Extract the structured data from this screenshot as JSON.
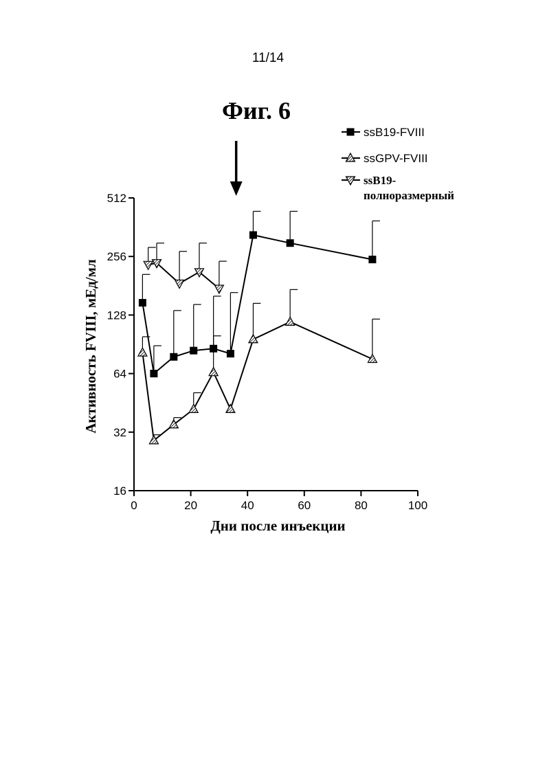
{
  "page_number": "11/14",
  "figure_title": "Фиг. 6",
  "chart_data": {
    "type": "line",
    "xlabel": "Дни после инъекции",
    "ylabel": "Активность FVIII, мЕд/мл",
    "xlim": [
      0,
      100
    ],
    "ylim": [
      16,
      512
    ],
    "y_scale": "log2",
    "x_ticks": [
      0,
      20,
      40,
      60,
      80,
      100
    ],
    "y_ticks": [
      16,
      32,
      64,
      128,
      256,
      512
    ],
    "x_tick_labels": [
      "0",
      "20",
      "40",
      "60",
      "80",
      "100"
    ],
    "y_tick_labels": [
      "16",
      "32",
      "64",
      "128",
      "256",
      "512"
    ],
    "grid": false,
    "legend_position": "top-right",
    "annotation": {
      "type": "arrow-down",
      "x": 36
    },
    "series": [
      {
        "name": "ssB19-FVIII",
        "marker": "square-filled",
        "x": [
          3,
          7,
          14,
          21,
          28,
          34,
          42,
          55,
          84
        ],
        "y": [
          148,
          64,
          78,
          84,
          86,
          81,
          330,
          300,
          247
        ],
        "err_upper": [
          207,
          89,
          135,
          145,
          160,
          167,
          437,
          437,
          390
        ]
      },
      {
        "name": "ssGPV-FVIII",
        "marker": "triangle-up-hatched",
        "x": [
          3,
          7,
          14,
          21,
          28,
          34,
          42,
          55,
          84
        ],
        "y": [
          82,
          29,
          35,
          42,
          65,
          42,
          96,
          118,
          76
        ],
        "err_upper": [
          99,
          31,
          38,
          51,
          100,
          42,
          147,
          173,
          122
        ]
      },
      {
        "name": "ssB19-\nполноразмерный",
        "name_lines": [
          "ssB19-",
          "полноразмерный"
        ],
        "marker": "triangle-down-hatched",
        "x": [
          5,
          8,
          16,
          23,
          30
        ],
        "y": [
          232,
          237,
          186,
          213,
          175
        ],
        "err_upper": [
          285,
          300,
          272,
          300,
          242
        ]
      }
    ]
  }
}
